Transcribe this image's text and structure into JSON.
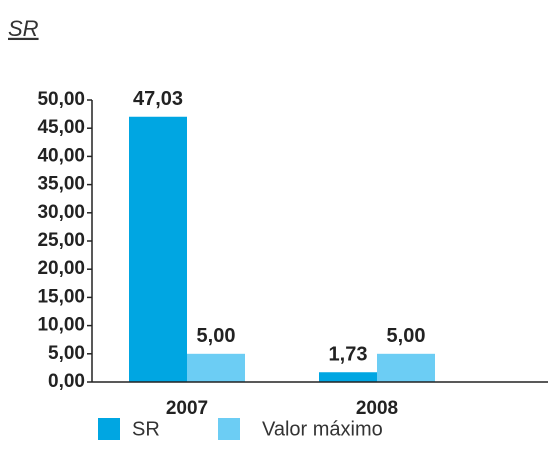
{
  "chart_data": {
    "type": "bar",
    "title": "SR",
    "categories": [
      "2007",
      "2008"
    ],
    "series": [
      {
        "name": "SR",
        "color": "#00a6e2",
        "values": [
          47.03,
          1.73
        ],
        "value_labels": [
          "47,03",
          "1,73"
        ]
      },
      {
        "name": "Valor máximo",
        "color": "#6ccdf4",
        "values": [
          5.0,
          5.0
        ],
        "value_labels": [
          "5,00",
          "5,00"
        ]
      }
    ],
    "ylim": [
      0,
      50
    ],
    "yticks": [
      {
        "value": 0,
        "label": "0,00"
      },
      {
        "value": 5,
        "label": "5,00"
      },
      {
        "value": 10,
        "label": "10,00"
      },
      {
        "value": 15,
        "label": "15,00"
      },
      {
        "value": 20,
        "label": "20,00"
      },
      {
        "value": 25,
        "label": "25,00"
      },
      {
        "value": 30,
        "label": "30,00"
      },
      {
        "value": 35,
        "label": "35,00"
      },
      {
        "value": 40,
        "label": "40,00"
      },
      {
        "value": 45,
        "label": "45,00"
      },
      {
        "value": 50,
        "label": "50,00"
      }
    ],
    "grid": false,
    "legend": "bottom"
  }
}
